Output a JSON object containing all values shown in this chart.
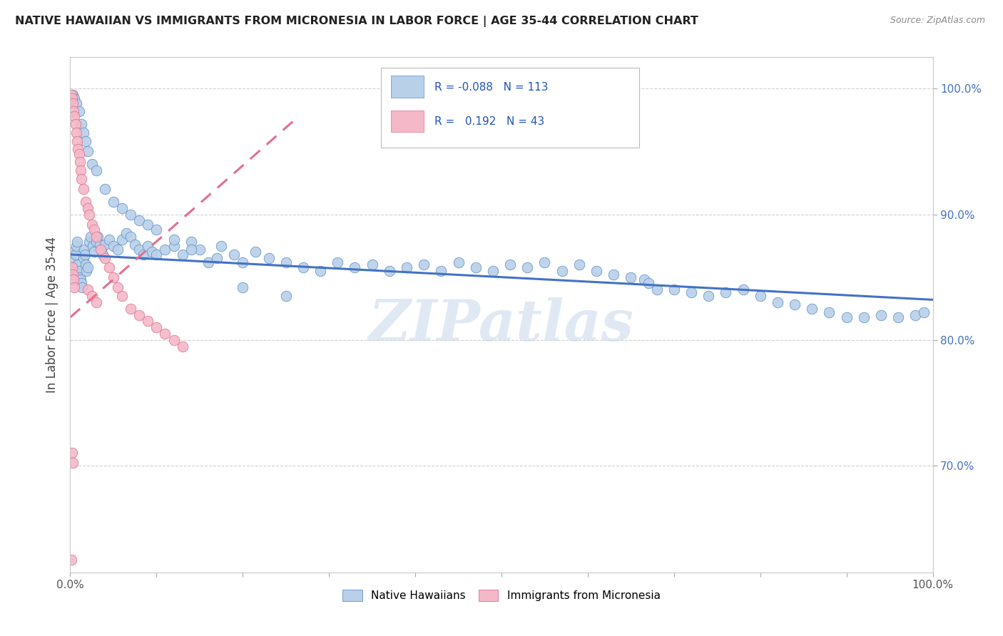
{
  "title": "NATIVE HAWAIIAN VS IMMIGRANTS FROM MICRONESIA IN LABOR FORCE | AGE 35-44 CORRELATION CHART",
  "source": "Source: ZipAtlas.com",
  "ylabel": "In Labor Force | Age 35-44",
  "ylabel_right_ticks": [
    "70.0%",
    "80.0%",
    "90.0%",
    "100.0%"
  ],
  "ylabel_right_values": [
    0.7,
    0.8,
    0.9,
    1.0
  ],
  "legend_blue_r": "-0.088",
  "legend_blue_n": "113",
  "legend_pink_r": "0.192",
  "legend_pink_n": "43",
  "blue_fill_color": "#b8d0e8",
  "pink_fill_color": "#f4b8c8",
  "blue_edge_color": "#6090c8",
  "pink_edge_color": "#e07090",
  "blue_line_color": "#4472c4",
  "pink_line_color": "#e07090",
  "watermark": "ZIPatlas",
  "xlim": [
    0.0,
    1.0
  ],
  "ylim": [
    0.615,
    1.025
  ],
  "blue_trend_x": [
    0.0,
    1.0
  ],
  "blue_trend_y": [
    0.868,
    0.832
  ],
  "pink_trend_x": [
    0.0,
    0.26
  ],
  "pink_trend_y": [
    0.818,
    0.975
  ],
  "blue_points_x": [
    0.002,
    0.003,
    0.004,
    0.005,
    0.006,
    0.007,
    0.008,
    0.009,
    0.01,
    0.011,
    0.012,
    0.013,
    0.014,
    0.015,
    0.016,
    0.017,
    0.018,
    0.019,
    0.02,
    0.022,
    0.024,
    0.026,
    0.028,
    0.03,
    0.032,
    0.034,
    0.036,
    0.038,
    0.04,
    0.045,
    0.05,
    0.055,
    0.06,
    0.065,
    0.07,
    0.075,
    0.08,
    0.085,
    0.09,
    0.095,
    0.1,
    0.11,
    0.12,
    0.13,
    0.14,
    0.15,
    0.16,
    0.175,
    0.19,
    0.2,
    0.215,
    0.23,
    0.25,
    0.27,
    0.29,
    0.31,
    0.33,
    0.35,
    0.37,
    0.39,
    0.41,
    0.43,
    0.45,
    0.47,
    0.49,
    0.51,
    0.53,
    0.55,
    0.57,
    0.59,
    0.61,
    0.63,
    0.65,
    0.665,
    0.67,
    0.68,
    0.7,
    0.72,
    0.74,
    0.76,
    0.78,
    0.8,
    0.82,
    0.84,
    0.86,
    0.88,
    0.9,
    0.92,
    0.94,
    0.96,
    0.98,
    0.99,
    0.003,
    0.005,
    0.007,
    0.01,
    0.013,
    0.015,
    0.018,
    0.02,
    0.025,
    0.03,
    0.04,
    0.05,
    0.06,
    0.07,
    0.08,
    0.09,
    0.1,
    0.12,
    0.14,
    0.17,
    0.2,
    0.25
  ],
  "blue_points_y": [
    0.862,
    0.858,
    0.87,
    0.855,
    0.868,
    0.875,
    0.878,
    0.86,
    0.855,
    0.85,
    0.848,
    0.845,
    0.842,
    0.865,
    0.872,
    0.868,
    0.86,
    0.855,
    0.858,
    0.878,
    0.882,
    0.875,
    0.87,
    0.878,
    0.882,
    0.876,
    0.872,
    0.868,
    0.876,
    0.88,
    0.875,
    0.872,
    0.88,
    0.885,
    0.882,
    0.876,
    0.872,
    0.868,
    0.875,
    0.87,
    0.868,
    0.872,
    0.875,
    0.868,
    0.878,
    0.872,
    0.862,
    0.875,
    0.868,
    0.862,
    0.87,
    0.865,
    0.862,
    0.858,
    0.855,
    0.862,
    0.858,
    0.86,
    0.855,
    0.858,
    0.86,
    0.855,
    0.862,
    0.858,
    0.855,
    0.86,
    0.858,
    0.862,
    0.855,
    0.86,
    0.855,
    0.852,
    0.85,
    0.848,
    0.845,
    0.84,
    0.84,
    0.838,
    0.835,
    0.838,
    0.84,
    0.835,
    0.83,
    0.828,
    0.825,
    0.822,
    0.818,
    0.818,
    0.82,
    0.818,
    0.82,
    0.822,
    0.995,
    0.992,
    0.988,
    0.982,
    0.972,
    0.965,
    0.958,
    0.95,
    0.94,
    0.935,
    0.92,
    0.91,
    0.905,
    0.9,
    0.895,
    0.892,
    0.888,
    0.88,
    0.872,
    0.865,
    0.842,
    0.835
  ],
  "pink_points_x": [
    0.001,
    0.002,
    0.003,
    0.004,
    0.005,
    0.006,
    0.007,
    0.008,
    0.009,
    0.01,
    0.011,
    0.012,
    0.013,
    0.015,
    0.018,
    0.02,
    0.022,
    0.025,
    0.028,
    0.03,
    0.035,
    0.04,
    0.045,
    0.05,
    0.055,
    0.06,
    0.07,
    0.08,
    0.09,
    0.1,
    0.11,
    0.12,
    0.13,
    0.002,
    0.003,
    0.004,
    0.005,
    0.02,
    0.025,
    0.03,
    0.002,
    0.003,
    0.001
  ],
  "pink_points_y": [
    0.995,
    0.992,
    0.988,
    0.982,
    0.978,
    0.972,
    0.965,
    0.958,
    0.952,
    0.948,
    0.942,
    0.935,
    0.928,
    0.92,
    0.91,
    0.905,
    0.9,
    0.892,
    0.888,
    0.882,
    0.872,
    0.865,
    0.858,
    0.85,
    0.842,
    0.835,
    0.825,
    0.82,
    0.815,
    0.81,
    0.805,
    0.8,
    0.795,
    0.858,
    0.852,
    0.848,
    0.842,
    0.84,
    0.835,
    0.83,
    0.71,
    0.702,
    0.625
  ]
}
